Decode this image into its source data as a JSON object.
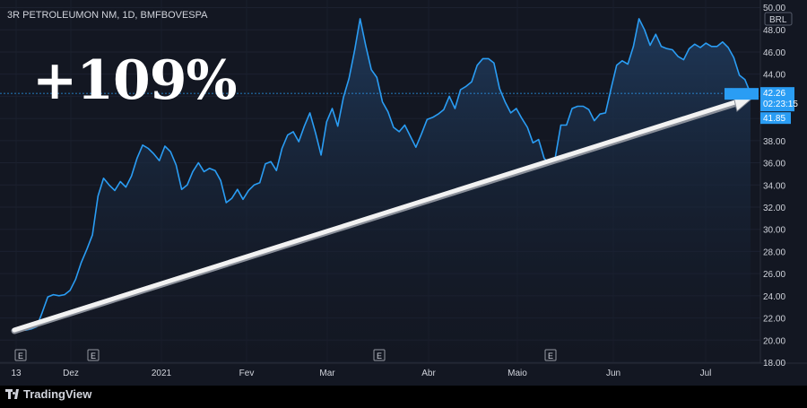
{
  "header": {
    "symbol_title": "3R PETROLEUMON NM, 1D, BMFBOVESPA"
  },
  "headline": "+109%",
  "footer": {
    "brand": "TradingView"
  },
  "colors": {
    "background": "#131722",
    "line": "#2a9df4",
    "price_label": "#2a9df4",
    "arrow": "#f2f2f2",
    "text": "#d1d4dc"
  },
  "chart_data": {
    "type": "area",
    "currency": "BRL",
    "x_labels": [
      "13",
      "Dez",
      "2021",
      "Fev",
      "Mar",
      "Abr",
      "Maio",
      "Jun",
      "Jul"
    ],
    "y_ticks": [
      18.0,
      20.0,
      22.0,
      24.0,
      26.0,
      28.0,
      30.0,
      32.0,
      34.0,
      36.0,
      38.0,
      40.0,
      42.0,
      44.0,
      46.0,
      48.0,
      50.0
    ],
    "ylim": [
      18,
      50
    ],
    "y_tick_labels": [
      "18.00",
      "20.00",
      "22.00",
      "24.00",
      "26.00",
      "28.00",
      "30.00",
      "32.00",
      "34.00",
      "36.00",
      "38.00",
      "40.00",
      "42.00",
      "44.00",
      "46.00",
      "48.00",
      "50.00"
    ],
    "current_price": "42.26",
    "countdown": "02:23:15",
    "low_label": "41.85",
    "events": [
      "E",
      "E",
      "E",
      "E"
    ],
    "values": [
      21.0,
      21.0,
      20.9,
      21.0,
      21.2,
      22.5,
      23.9,
      24.1,
      24.0,
      24.1,
      24.5,
      25.5,
      27.0,
      28.2,
      29.5,
      33.0,
      34.6,
      34.0,
      33.5,
      34.3,
      33.8,
      34.8,
      36.4,
      37.6,
      37.3,
      36.8,
      36.2,
      37.5,
      37.0,
      35.8,
      33.6,
      34.0,
      35.2,
      36.0,
      35.2,
      35.5,
      35.3,
      34.4,
      32.4,
      32.8,
      33.6,
      32.7,
      33.5,
      34.0,
      34.2,
      35.9,
      36.1,
      35.3,
      37.3,
      38.5,
      38.8,
      37.9,
      39.3,
      40.5,
      38.7,
      36.7,
      39.7,
      40.9,
      39.3,
      41.9,
      43.6,
      46.1,
      49.0,
      46.6,
      44.4,
      43.7,
      41.5,
      40.6,
      39.2,
      38.8,
      39.4,
      38.4,
      37.4,
      38.6,
      39.9,
      40.1,
      40.4,
      40.8,
      42.0,
      40.9,
      42.6,
      42.9,
      43.3,
      44.8,
      45.4,
      45.4,
      45.0,
      42.7,
      41.5,
      40.5,
      40.9,
      40.0,
      39.2,
      37.8,
      38.1,
      36.4,
      35.9,
      36.5,
      39.4,
      39.4,
      40.9,
      41.1,
      41.1,
      40.8,
      39.8,
      40.4,
      40.5,
      42.7,
      44.8,
      45.2,
      44.9,
      46.5,
      49.0,
      48.0,
      46.6,
      47.6,
      46.5,
      46.3,
      46.2,
      45.6,
      45.3,
      46.3,
      46.7,
      46.4,
      46.8,
      46.5,
      46.5,
      46.9,
      46.4,
      45.5,
      43.9,
      43.5,
      42.26
    ]
  }
}
